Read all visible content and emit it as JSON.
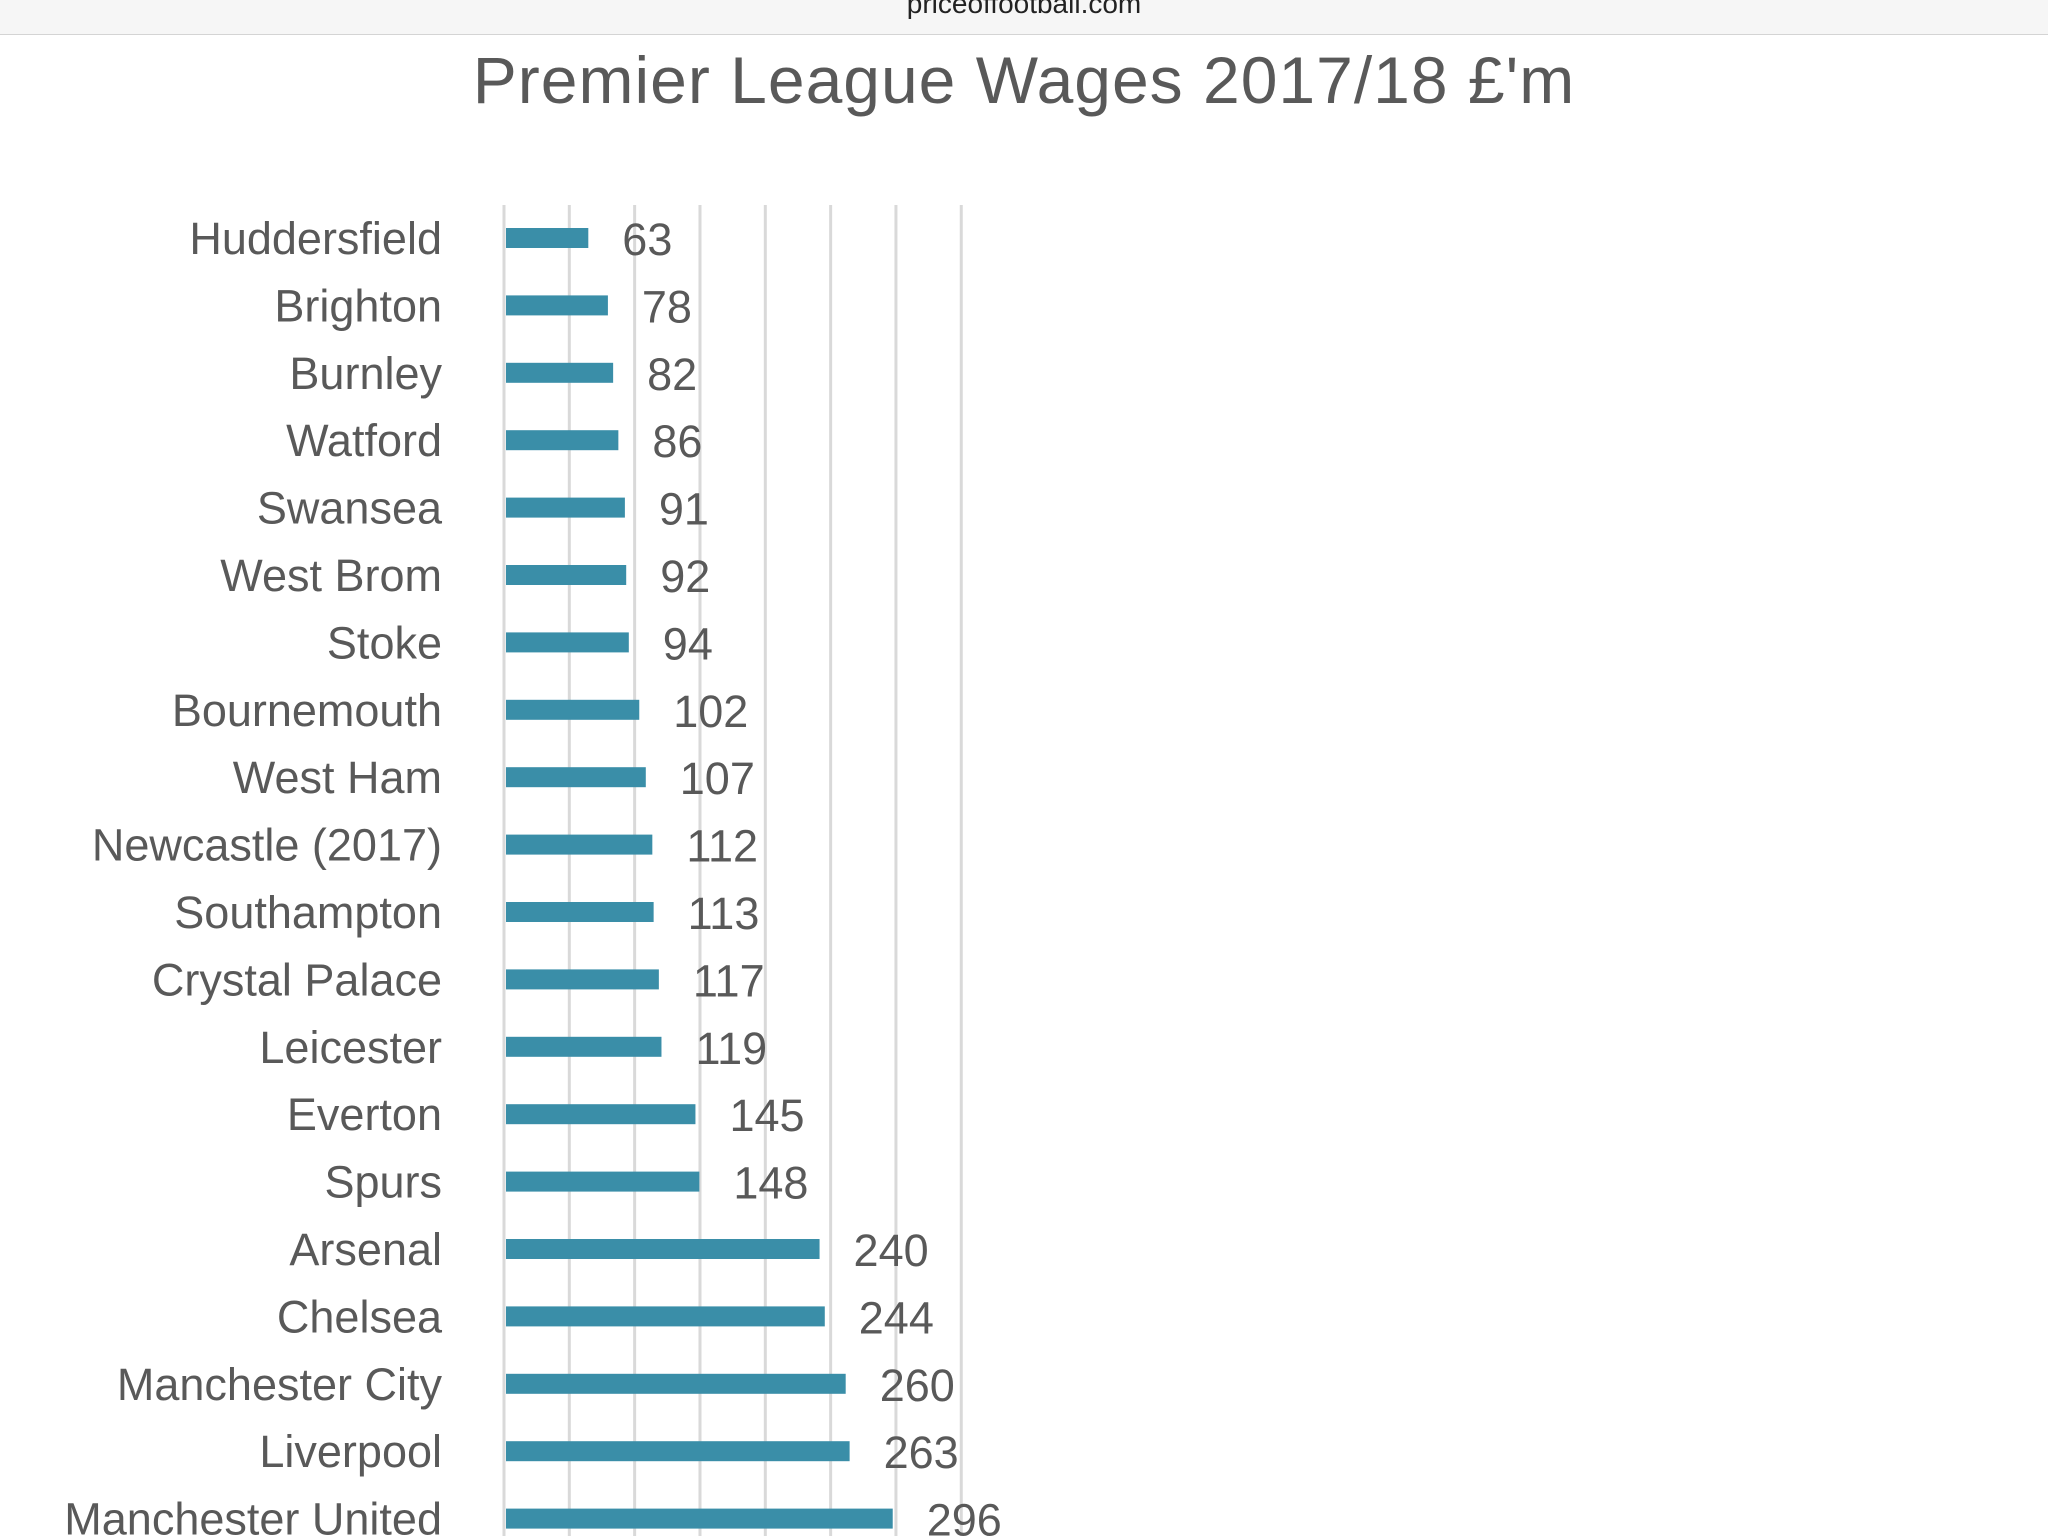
{
  "browser": {
    "url_text": "priceoffootball.com"
  },
  "colors": {
    "bar": "#3a8ea8",
    "grid": "#d9d9d9",
    "text": "#595959"
  },
  "chart_data": {
    "type": "bar",
    "orientation": "horizontal",
    "title": "Premier League Wages 2017/18 £'m",
    "xlabel": "",
    "ylabel": "",
    "xlim": [
      0,
      350
    ],
    "grid": true,
    "legend": "none",
    "categories": [
      "Huddersfield",
      "Brighton",
      "Burnley",
      "Watford",
      "Swansea",
      "West Brom",
      "Stoke",
      "Bournemouth",
      "West Ham",
      "Newcastle (2017)",
      "Southampton",
      "Crystal Palace",
      "Leicester",
      "Everton",
      "Spurs",
      "Arsenal",
      "Chelsea",
      "Manchester City",
      "Liverpool",
      "Manchester United"
    ],
    "values": [
      63,
      78,
      82,
      86,
      91,
      92,
      94,
      102,
      107,
      112,
      113,
      117,
      119,
      145,
      148,
      240,
      244,
      260,
      263,
      296
    ]
  }
}
